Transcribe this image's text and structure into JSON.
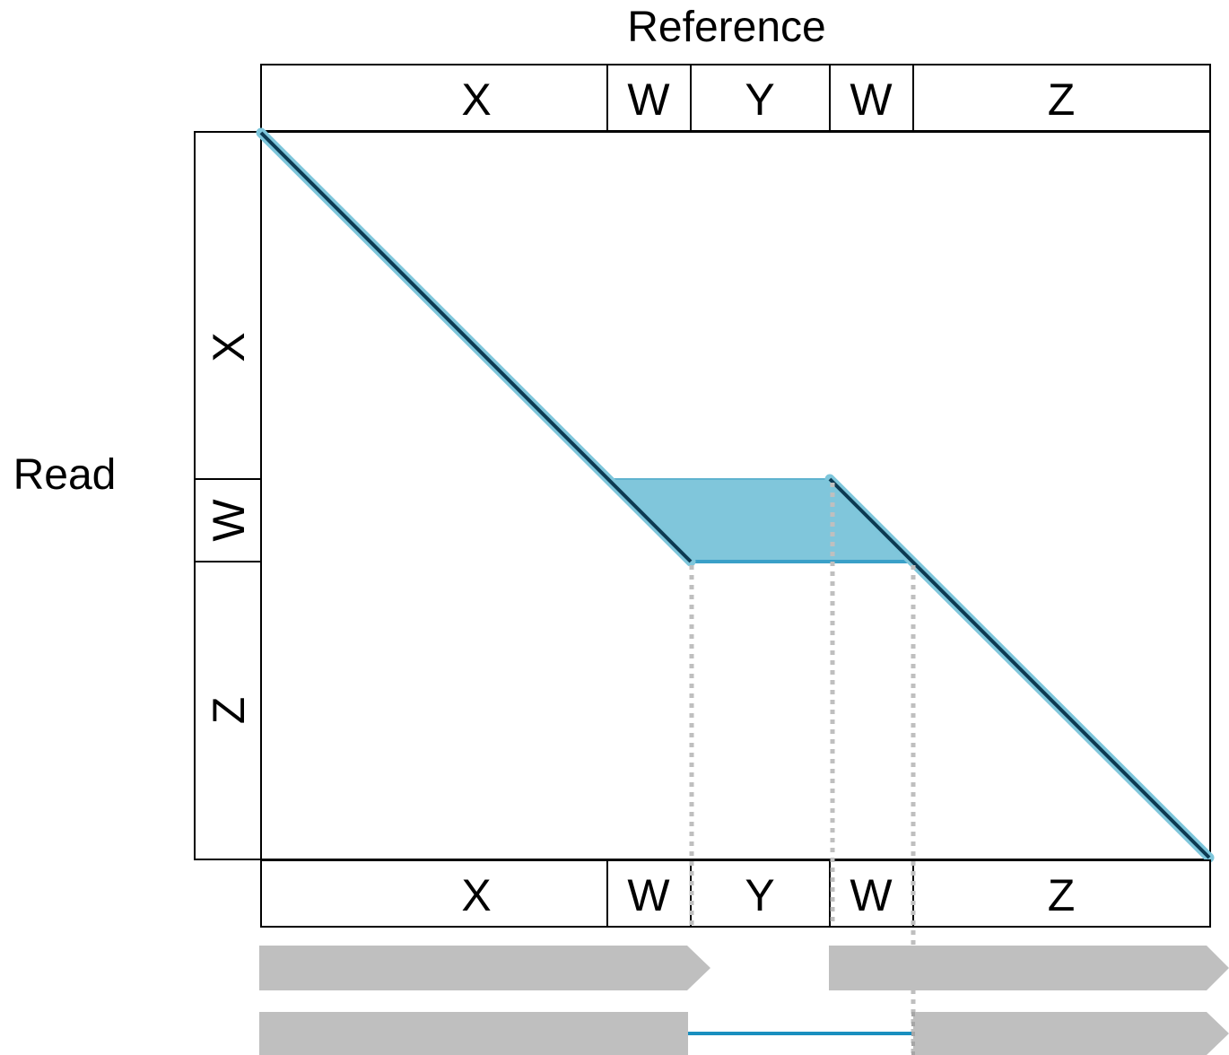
{
  "reference_label": "Reference",
  "read_label": "Read",
  "reference_segments": [
    "X",
    "W",
    "Y",
    "W",
    "Z"
  ],
  "read_segments": [
    "X",
    "W",
    "Z"
  ],
  "bottom_segments": [
    "X",
    "W",
    "Y",
    "W",
    "Z"
  ],
  "colors": {
    "alignment_line": "#0d3a52",
    "alignment_highlight": "#7ec6db",
    "repeat_fill": "#80c6db",
    "bar_fill": "#bfbfbf",
    "link_line": "#1a8fbf",
    "guide_dash": "#bfbfbf",
    "border": "#000000"
  }
}
